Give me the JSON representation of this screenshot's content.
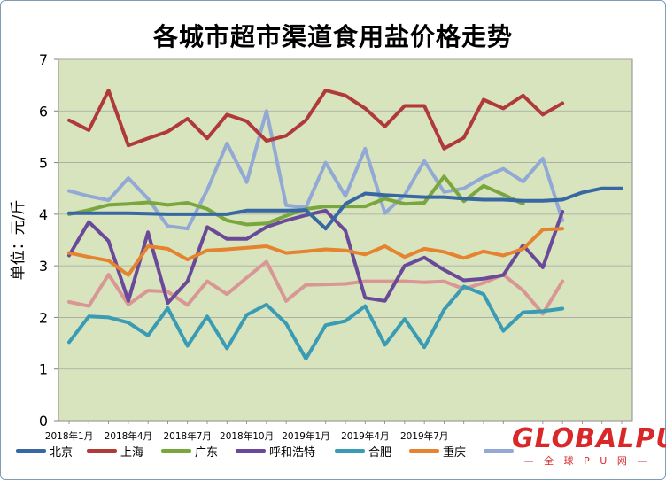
{
  "chart_data": {
    "type": "line",
    "title": "各城市超市渠道食用盐价格走势",
    "ylabel": "单位：元/斤",
    "ylim": [
      0,
      7
    ],
    "yticks": [
      0,
      1,
      2,
      3,
      4,
      5,
      6,
      7
    ],
    "x_tick_labels": [
      "2018年1月",
      "2018年4月",
      "2018年7月",
      "2018年10月",
      "2019年1月",
      "2019年4月",
      "2019年7月"
    ],
    "legend_position": "bottom",
    "grid": true,
    "plot_background": "#d7e4bd",
    "series": [
      {
        "name": "北京",
        "color": "#3868a4",
        "values": [
          4.02,
          4.02,
          4.02,
          4.02,
          4.01,
          4.0,
          4.0,
          4.0,
          4.0,
          4.07,
          4.07,
          4.07,
          4.08,
          3.72,
          4.2,
          4.4,
          4.37,
          4.35,
          4.33,
          4.33,
          4.3,
          4.28,
          4.28,
          4.26,
          4.26,
          4.28,
          4.42,
          4.5,
          4.5
        ]
      },
      {
        "name": "上海",
        "color": "#b03a3a",
        "values": [
          5.82,
          5.63,
          6.4,
          5.33,
          5.47,
          5.6,
          5.85,
          5.47,
          5.93,
          5.8,
          5.42,
          5.52,
          5.82,
          6.4,
          6.3,
          6.05,
          5.7,
          6.1,
          6.1,
          5.27,
          5.48,
          6.22,
          6.05,
          6.3,
          5.93,
          6.15
        ]
      },
      {
        "name": "广东",
        "color": "#7aa63e",
        "values": [
          4.0,
          4.08,
          4.18,
          4.2,
          4.23,
          4.18,
          4.22,
          4.1,
          3.88,
          3.8,
          3.82,
          3.97,
          4.1,
          4.15,
          4.15,
          4.15,
          4.3,
          4.2,
          4.22,
          4.73,
          4.25,
          4.55,
          4.38,
          4.2
        ]
      },
      {
        "name": "呼和浩特",
        "color": "#6a4a98",
        "values": [
          3.2,
          3.85,
          3.48,
          2.32,
          3.65,
          2.28,
          2.7,
          3.75,
          3.52,
          3.52,
          3.75,
          3.88,
          3.98,
          4.07,
          3.68,
          2.38,
          2.32,
          3.0,
          3.16,
          2.92,
          2.72,
          2.75,
          2.82,
          3.4,
          2.97,
          4.05
        ]
      },
      {
        "name": "合肥",
        "color": "#3a9bb4",
        "values": [
          1.52,
          2.02,
          2.0,
          1.9,
          1.65,
          2.18,
          1.45,
          2.02,
          1.4,
          2.05,
          2.25,
          1.88,
          1.2,
          1.85,
          1.93,
          2.22,
          1.47,
          1.97,
          1.42,
          2.15,
          2.6,
          2.45,
          1.74,
          2.1,
          2.12,
          2.17
        ]
      },
      {
        "name": "重庆",
        "color": "#e5832f",
        "values": [
          3.25,
          3.17,
          3.1,
          2.82,
          3.38,
          3.33,
          3.12,
          3.3,
          3.32,
          3.35,
          3.38,
          3.25,
          3.28,
          3.32,
          3.3,
          3.22,
          3.38,
          3.17,
          3.33,
          3.27,
          3.15,
          3.28,
          3.2,
          3.33,
          3.7,
          3.72
        ]
      },
      {
        "name": "",
        "color": "#92a9d6",
        "values": [
          4.45,
          4.35,
          4.27,
          4.7,
          4.3,
          3.77,
          3.72,
          4.47,
          5.37,
          4.62,
          6.0,
          4.17,
          4.13,
          5.0,
          4.35,
          5.27,
          4.02,
          4.37,
          5.03,
          4.43,
          4.5,
          4.72,
          4.88,
          4.63,
          5.08,
          3.88
        ]
      },
      {
        "name": "",
        "color": "#d99694",
        "values": [
          2.3,
          2.22,
          2.83,
          2.25,
          2.52,
          2.5,
          2.24,
          2.7,
          2.45,
          2.77,
          3.08,
          2.32,
          2.63,
          2.64,
          2.65,
          2.7,
          2.7,
          2.7,
          2.68,
          2.7,
          2.55,
          2.67,
          2.83,
          2.52,
          2.07,
          2.7
        ]
      }
    ]
  },
  "logo": {
    "main": "GLOBALPU",
    "sub": "— 全 球 P U 网 —"
  }
}
